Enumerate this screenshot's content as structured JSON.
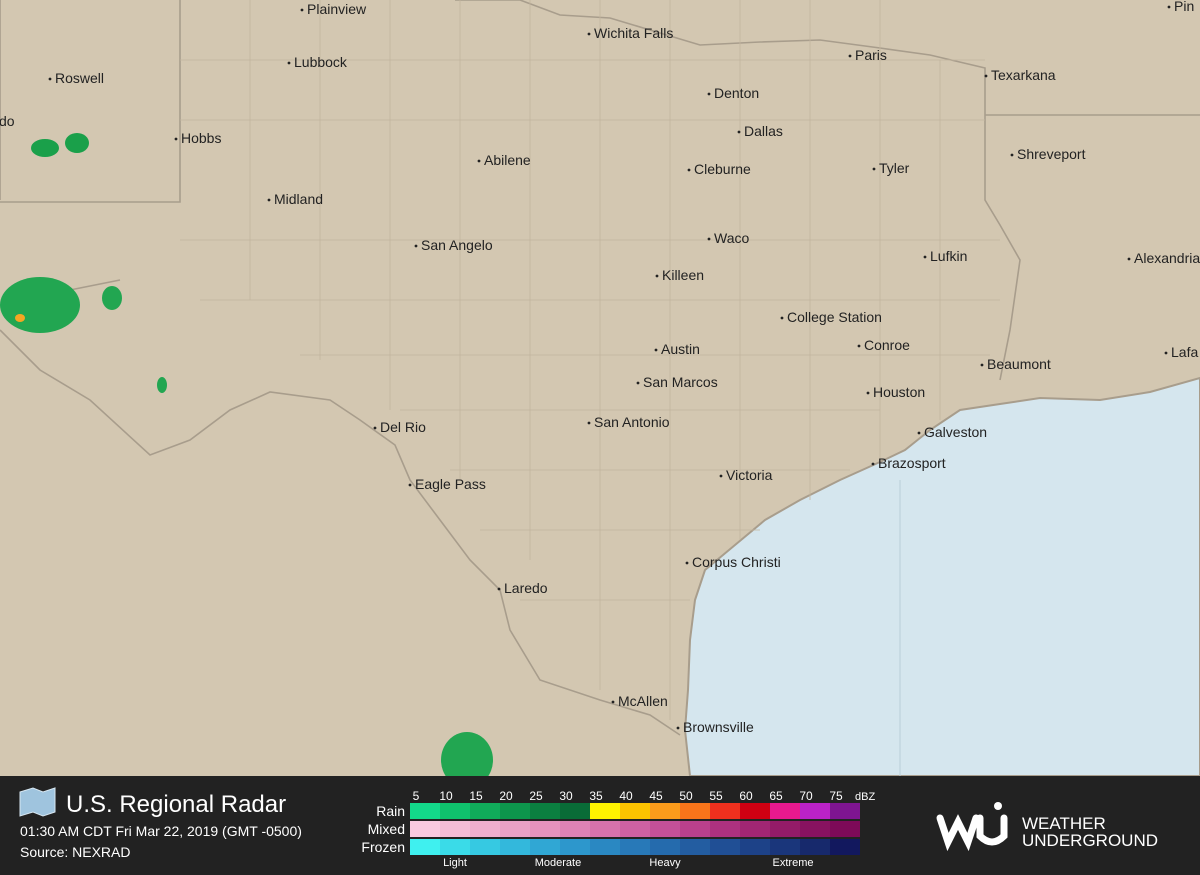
{
  "map": {
    "cities": [
      "Plainview",
      "Wichita Falls",
      "Paris",
      "Texarkana",
      "Pin",
      "Roswell",
      "Lubbock",
      "Denton",
      "do",
      "Dallas",
      "Hobbs",
      "Abilene",
      "Cleburne",
      "Tyler",
      "Shreveport",
      "Midland",
      "San Angelo",
      "Waco",
      "Lufkin",
      "Alexandria",
      "Killeen",
      "College Station",
      "Conroe",
      "Austin",
      "Beaumont",
      "Lafa",
      "San Marcos",
      "Houston",
      "Del Rio",
      "San Antonio",
      "Galveston",
      "Brazosport",
      "Eagle Pass",
      "Victoria",
      "Corpus Christi",
      "Laredo",
      "McAllen",
      "Brownsville"
    ]
  },
  "footer": {
    "title": "U.S. Regional Radar",
    "timestamp": "01:30 AM CDT Fri Mar 22, 2019 (GMT -0500)",
    "source": "Source: NEXRAD",
    "legend": {
      "rows": [
        "Rain",
        "Mixed",
        "Frozen"
      ],
      "scale": [
        5,
        10,
        15,
        20,
        25,
        30,
        35,
        40,
        45,
        50,
        55,
        60,
        65,
        70,
        75
      ],
      "unit": "dBZ",
      "intensity": [
        "Light",
        "Moderate",
        "Heavy",
        "Extreme"
      ]
    },
    "brand": [
      "WEATHER",
      "UNDERGROUND"
    ]
  }
}
